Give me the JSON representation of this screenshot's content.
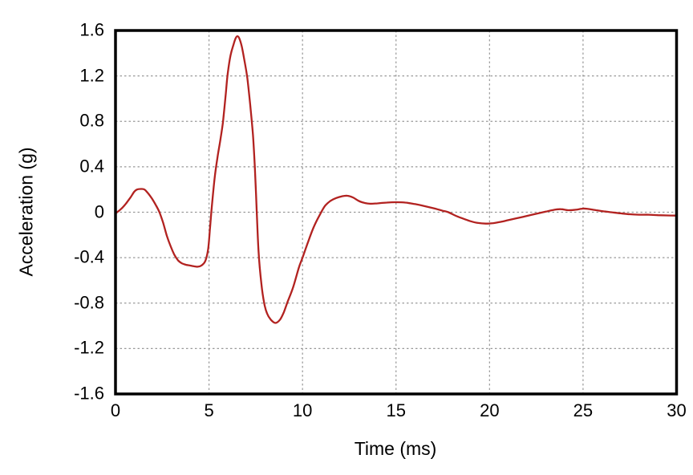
{
  "chart_data": {
    "type": "line",
    "title": "",
    "xlabel": "Time (ms)",
    "ylabel": "Acceleration (g)",
    "xlim": [
      0,
      30
    ],
    "ylim": [
      -1.6,
      1.6
    ],
    "xticks": [
      0,
      5,
      10,
      15,
      20,
      25,
      30
    ],
    "xtick_labels": [
      "0",
      "5",
      "10",
      "15",
      "20",
      "25",
      "30"
    ],
    "yticks": [
      1.6,
      1.2,
      0.8,
      0.4,
      0,
      -0.4,
      -0.8,
      -1.2,
      -1.6
    ],
    "ytick_labels": [
      "1.6",
      "1.2",
      "0.8",
      "0.4",
      "0",
      "-0.4",
      "-0.8",
      "-1.2",
      "-1.6"
    ],
    "grid": {
      "show": true,
      "line_style": "dashed",
      "color": "#999999"
    },
    "frame": {
      "color": "#000000",
      "width": 3.5
    },
    "background": "#ffffff",
    "text_color": "#000000",
    "legend": {
      "show": false
    },
    "series": [
      {
        "name": "acceleration",
        "color": "#b22220",
        "line_width": 2.3,
        "points": [
          [
            0.0,
            -0.01
          ],
          [
            0.2,
            0.015
          ],
          [
            0.4,
            0.045
          ],
          [
            0.6,
            0.085
          ],
          [
            0.8,
            0.13
          ],
          [
            1.0,
            0.18
          ],
          [
            1.15,
            0.2
          ],
          [
            1.35,
            0.205
          ],
          [
            1.55,
            0.2
          ],
          [
            1.75,
            0.165
          ],
          [
            1.95,
            0.12
          ],
          [
            2.15,
            0.065
          ],
          [
            2.35,
            0.0
          ],
          [
            2.55,
            -0.095
          ],
          [
            2.75,
            -0.21
          ],
          [
            2.95,
            -0.3
          ],
          [
            3.15,
            -0.375
          ],
          [
            3.35,
            -0.425
          ],
          [
            3.55,
            -0.45
          ],
          [
            3.75,
            -0.462
          ],
          [
            4.0,
            -0.47
          ],
          [
            4.2,
            -0.476
          ],
          [
            4.4,
            -0.48
          ],
          [
            4.6,
            -0.468
          ],
          [
            4.8,
            -0.43
          ],
          [
            4.95,
            -0.33
          ],
          [
            5.05,
            -0.15
          ],
          [
            5.15,
            0.05
          ],
          [
            5.3,
            0.3
          ],
          [
            5.45,
            0.48
          ],
          [
            5.6,
            0.63
          ],
          [
            5.75,
            0.8
          ],
          [
            5.9,
            1.05
          ],
          [
            6.0,
            1.22
          ],
          [
            6.15,
            1.38
          ],
          [
            6.3,
            1.47
          ],
          [
            6.42,
            1.53
          ],
          [
            6.52,
            1.55
          ],
          [
            6.62,
            1.53
          ],
          [
            6.75,
            1.46
          ],
          [
            6.9,
            1.33
          ],
          [
            7.05,
            1.18
          ],
          [
            7.2,
            0.95
          ],
          [
            7.35,
            0.68
          ],
          [
            7.45,
            0.4
          ],
          [
            7.55,
            0.02
          ],
          [
            7.65,
            -0.35
          ],
          [
            7.8,
            -0.63
          ],
          [
            7.95,
            -0.8
          ],
          [
            8.1,
            -0.89
          ],
          [
            8.3,
            -0.945
          ],
          [
            8.55,
            -0.975
          ],
          [
            8.8,
            -0.945
          ],
          [
            9.0,
            -0.88
          ],
          [
            9.2,
            -0.79
          ],
          [
            9.5,
            -0.66
          ],
          [
            9.8,
            -0.49
          ],
          [
            10.0,
            -0.4
          ],
          [
            10.3,
            -0.26
          ],
          [
            10.6,
            -0.13
          ],
          [
            10.9,
            -0.03
          ],
          [
            11.2,
            0.055
          ],
          [
            11.5,
            0.1
          ],
          [
            11.8,
            0.125
          ],
          [
            12.1,
            0.14
          ],
          [
            12.4,
            0.145
          ],
          [
            12.7,
            0.13
          ],
          [
            13.0,
            0.1
          ],
          [
            13.3,
            0.083
          ],
          [
            13.6,
            0.075
          ],
          [
            14.0,
            0.078
          ],
          [
            14.5,
            0.085
          ],
          [
            15.0,
            0.088
          ],
          [
            15.5,
            0.085
          ],
          [
            16.0,
            0.072
          ],
          [
            16.5,
            0.055
          ],
          [
            17.0,
            0.035
          ],
          [
            17.5,
            0.013
          ],
          [
            17.8,
            0.0
          ],
          [
            18.2,
            -0.032
          ],
          [
            18.6,
            -0.057
          ],
          [
            19.0,
            -0.08
          ],
          [
            19.4,
            -0.095
          ],
          [
            19.8,
            -0.1
          ],
          [
            20.2,
            -0.096
          ],
          [
            20.6,
            -0.085
          ],
          [
            21.0,
            -0.07
          ],
          [
            21.4,
            -0.055
          ],
          [
            21.8,
            -0.04
          ],
          [
            22.2,
            -0.025
          ],
          [
            22.6,
            -0.01
          ],
          [
            23.0,
            0.005
          ],
          [
            23.4,
            0.02
          ],
          [
            23.8,
            0.027
          ],
          [
            24.2,
            0.018
          ],
          [
            24.6,
            0.022
          ],
          [
            25.0,
            0.032
          ],
          [
            25.3,
            0.028
          ],
          [
            25.7,
            0.018
          ],
          [
            26.1,
            0.008
          ],
          [
            26.5,
            0.0
          ],
          [
            27.0,
            -0.01
          ],
          [
            27.5,
            -0.018
          ],
          [
            28.0,
            -0.022
          ],
          [
            28.5,
            -0.022
          ],
          [
            29.0,
            -0.026
          ],
          [
            29.5,
            -0.028
          ],
          [
            30.0,
            -0.03
          ]
        ]
      }
    ]
  }
}
